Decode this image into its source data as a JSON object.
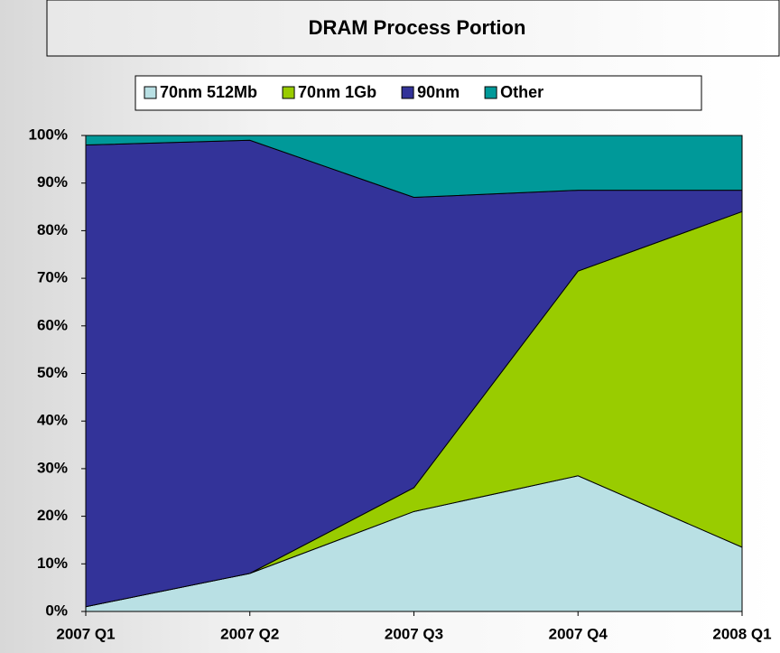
{
  "chart_data": {
    "type": "stacked_area",
    "title": "DRAM Process Portion",
    "categories": [
      "2007 Q1",
      "2007 Q2",
      "2007 Q3",
      "2007 Q4",
      "2008 Q1"
    ],
    "series": [
      {
        "name": "70nm 512Mb",
        "color": "#b9e0e4",
        "values": [
          1,
          8,
          21,
          28.5,
          13.5
        ]
      },
      {
        "name": "70nm 1Gb",
        "color": "#99cc00",
        "values": [
          0,
          0,
          5,
          43,
          70.5
        ]
      },
      {
        "name": "90nm",
        "color": "#333399",
        "values": [
          97,
          91,
          61,
          17,
          4.5
        ]
      },
      {
        "name": "Other",
        "color": "#009999",
        "values": [
          2,
          1,
          13,
          11.5,
          11.5
        ]
      }
    ],
    "ylim": [
      0,
      100
    ],
    "yticks": [
      {
        "value": 0,
        "label": "0%"
      },
      {
        "value": 10,
        "label": "10%"
      },
      {
        "value": 20,
        "label": "20%"
      },
      {
        "value": 30,
        "label": "30%"
      },
      {
        "value": 40,
        "label": "40%"
      },
      {
        "value": 50,
        "label": "50%"
      },
      {
        "value": 60,
        "label": "60%"
      },
      {
        "value": 70,
        "label": "70%"
      },
      {
        "value": 80,
        "label": "80%"
      },
      {
        "value": 90,
        "label": "90%"
      },
      {
        "value": 100,
        "label": "100%"
      }
    ]
  }
}
